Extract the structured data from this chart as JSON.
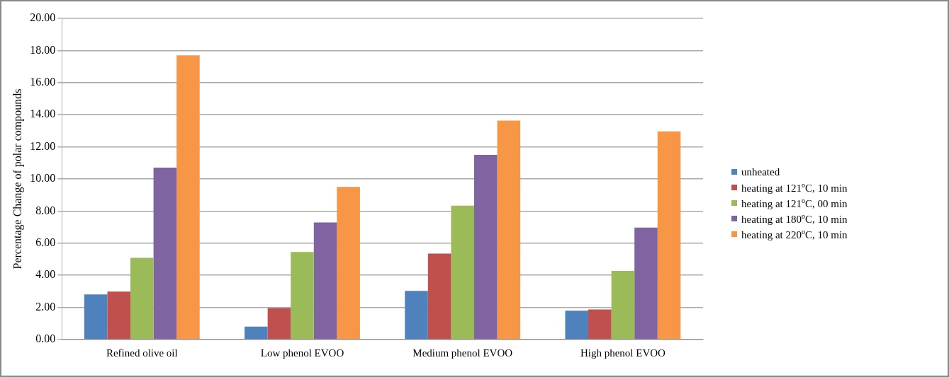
{
  "chart_data": {
    "type": "bar",
    "ylabel": "Percentage Change of polar compounds",
    "categories": [
      "Refined olive oil",
      "Low phenol EVOO",
      "Medium phenol EVOO",
      "High phenol EVOO"
    ],
    "series": [
      {
        "name": "unheated",
        "color": "#4f81bd",
        "values": [
          2.81,
          0.8,
          3.03,
          1.79
        ]
      },
      {
        "name": "heating at 121$^{o}$C, 10 min",
        "color": "#c0504d",
        "values": [
          2.99,
          1.96,
          5.35,
          1.87
        ]
      },
      {
        "name": "heating at 121$^{o}$C, 00 min",
        "color": "#9bbb59",
        "values": [
          5.09,
          5.45,
          8.34,
          4.27
        ]
      },
      {
        "name": "heating at 180$^{o}$C, 10 min",
        "color": "#8064a2",
        "values": [
          10.7,
          7.29,
          11.5,
          6.97
        ]
      },
      {
        "name": "heating at 220$^{o}$C, 10 min",
        "color": "#f79646",
        "values": [
          17.7,
          9.5,
          13.63,
          12.96
        ]
      }
    ],
    "ylim": [
      0,
      20
    ],
    "yticks": [
      {
        "value": 0,
        "label": "0.00"
      },
      {
        "value": 2,
        "label": "2.00"
      },
      {
        "value": 4,
        "label": "4.00"
      },
      {
        "value": 6,
        "label": "6.00"
      },
      {
        "value": 8,
        "label": "8.00"
      },
      {
        "value": 10,
        "label": "10.00"
      },
      {
        "value": 12,
        "label": "12.00"
      },
      {
        "value": 14,
        "label": "14.00"
      },
      {
        "value": 16,
        "label": "16.00"
      },
      {
        "value": 18,
        "label": "18.00"
      },
      {
        "value": 20,
        "label": "20.00"
      }
    ],
    "grid": "y",
    "legend": "right"
  }
}
